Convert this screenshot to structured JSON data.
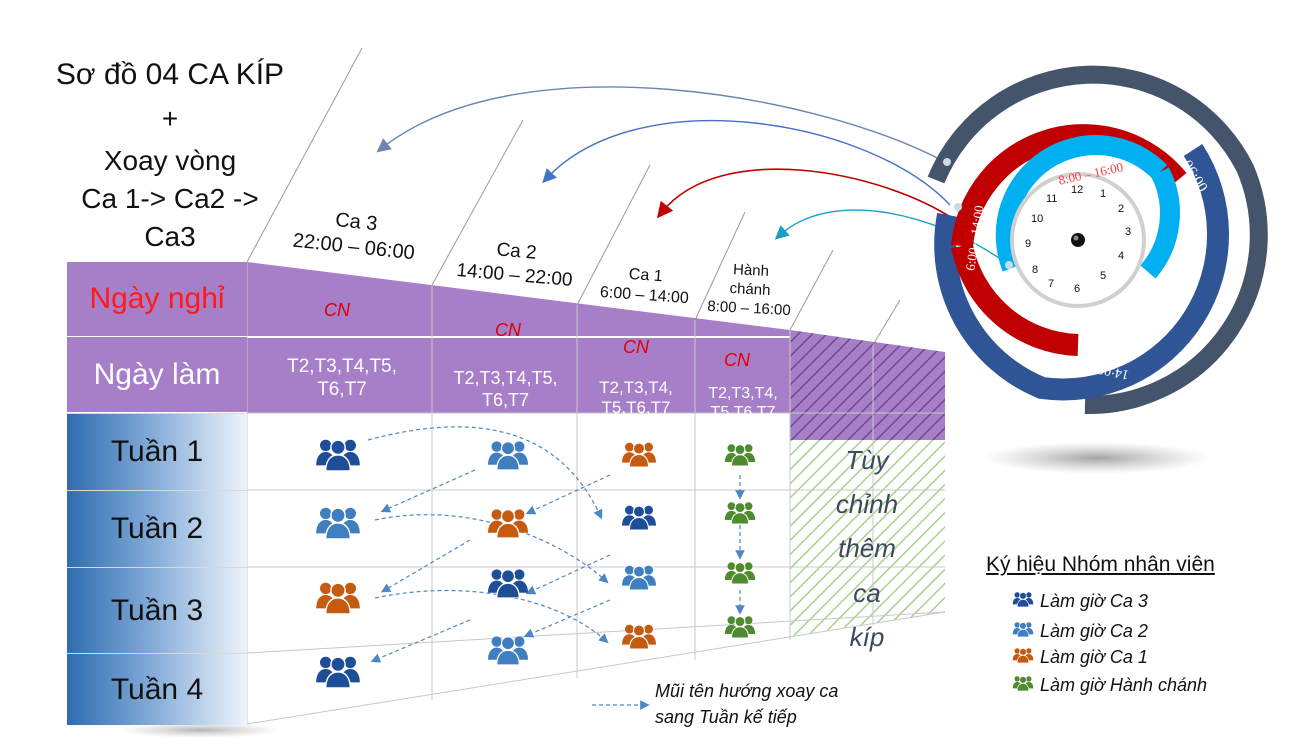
{
  "title": {
    "line1": "Sơ đồ 04 CA KÍP",
    "line2": "+",
    "line3": "Xoay vòng",
    "line4": "Ca 1-> Ca2 ->",
    "line5": "Ca3"
  },
  "columns": [
    {
      "name": "Ca 3",
      "time": "22:00 – 06:00"
    },
    {
      "name": "Ca 2",
      "time": "14:00 – 22:00"
    },
    {
      "name": "Ca 1",
      "time": "6:00 – 14:00"
    },
    {
      "name": "Hành chánh",
      "name_l1": "Hành",
      "name_l2": "chánh",
      "time": "8:00 – 16:00"
    }
  ],
  "rows": {
    "off_label": "Ngày nghỉ",
    "work_label": "Ngày làm",
    "weeks": [
      "Tuần 1",
      "Tuần 2",
      "Tuần 3",
      "Tuần 4"
    ]
  },
  "off_days": [
    "CN",
    "CN",
    "CN",
    "CN"
  ],
  "work_days": [
    {
      "l1": "T2,T3,T4,T5,",
      "l2": "T6,T7"
    },
    {
      "l1": "T2,T3,T4,T5,",
      "l2": "T6,T7"
    },
    {
      "l1": "T2,T3,T4,",
      "l2": "T5,T6,T7"
    },
    {
      "l1": "T2,T3,T4,",
      "l2": "T5,T6,T7"
    }
  ],
  "custom_text": {
    "l1": "Tùy",
    "l2": "chỉnh",
    "l3": "thêm ca",
    "l4": "kíp"
  },
  "legend": {
    "title": "Ký hiệu Nhóm nhân viên",
    "items": [
      {
        "label": "Làm giờ Ca 3",
        "color": "#1f4e99"
      },
      {
        "label": "Làm giờ Ca 2",
        "color": "#3f7fbf"
      },
      {
        "label": "Làm giờ Ca 1",
        "color": "#c55a11"
      },
      {
        "label": "Làm giờ Hành chánh",
        "color": "#4e8a2e"
      }
    ]
  },
  "arrow_note": {
    "l1": "Mũi tên hướng xoay ca",
    "l2": "sang Tuần kế tiếp"
  },
  "clock": {
    "outer_label": "22:00 – 06:00",
    "outer_bottom_label": "14:00 – 22:00",
    "red_label": "6:00 – 14:00",
    "inner_label": "8:00 – 16:00",
    "numbers": [
      "12",
      "1",
      "2",
      "3",
      "4",
      "5",
      "6",
      "7",
      "8",
      "9",
      "10",
      "11"
    ]
  },
  "colors": {
    "purple": "#a77fc8",
    "red_text": "#e00000",
    "ca3": "#1f4e99",
    "ca2": "#3f7fbf",
    "ca1": "#c55a11",
    "hc": "#4e8a2e",
    "ring_dark": "#44546a",
    "ring_blue": "#2f5597",
    "ring_red": "#c00000",
    "ring_cyan": "#00b0f0"
  },
  "grid": [
    [
      "ca3",
      "ca2",
      "ca1",
      "hc"
    ],
    [
      "ca2",
      "ca1",
      "ca3",
      "hc"
    ],
    [
      "ca1",
      "ca3",
      "ca2",
      "hc"
    ],
    [
      "ca3",
      "ca2",
      "ca1",
      "hc"
    ]
  ]
}
